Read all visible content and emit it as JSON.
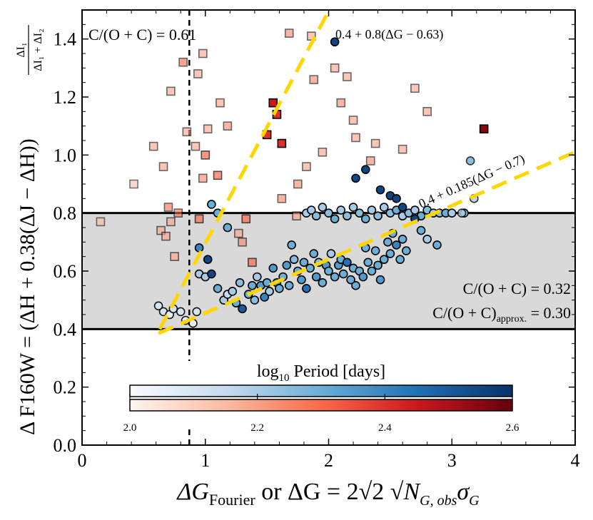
{
  "chart_data": {
    "type": "scatter",
    "xlim": [
      0,
      4
    ],
    "ylim": [
      0.0,
      1.5
    ],
    "x_ticks": [
      "0",
      "1",
      "2",
      "3",
      "4"
    ],
    "y_ticks": [
      "0.0",
      "0.2",
      "0.4",
      "0.6",
      "0.8",
      "1.0",
      "1.2",
      "1.4"
    ],
    "xlabel_text": "ΔG_Fourier or ΔG = 2√2 √N_G,obs σ_G",
    "ylabel_text": "Δ F160W = (ΔH + 0.38(ΔJ − ΔH)) ΔI1/(ΔI1+ΔI2)",
    "xlabel": {
      "main": "ΔG",
      "sub": "Fourier",
      "mid": " or ΔG = 2√2 √",
      "n": "N",
      "nsub": "G, obs",
      "sigma": "σ",
      "sigmasub": "G"
    },
    "ylabel": {
      "prefix": "Δ F160W = (ΔH + 0.38(ΔJ − ΔH))",
      "frac_num": "ΔI₁",
      "frac_den": "ΔI₁ + ΔI₂"
    },
    "annotations": {
      "cfrac_top": "C/(O + C) = 0.61",
      "cfrac_band": "C/(O + C) = 0.32",
      "cfrac_approx_main": "C/(O + C)",
      "cfrac_approx_sub": "approx.",
      "cfrac_approx_val": " = 0.30",
      "line_steep_label": "0.4 + 0.8(ΔG − 0.63)",
      "line_shallow_label": "0.4 + 0.185(ΔG − 0.7)"
    },
    "shaded_band": {
      "y0": 0.4,
      "y1": 0.8,
      "color": "#d9d9d9"
    },
    "hlines": [
      0.4,
      0.8
    ],
    "vline_x": 0.87,
    "lines": [
      {
        "name": "steep",
        "slope": 0.8,
        "x0": 0.63,
        "y0": 0.4,
        "x_range": [
          0.63,
          1.99
        ],
        "color": "#ffd700"
      },
      {
        "name": "shallow",
        "slope": 0.185,
        "x0": 0.7,
        "y0": 0.4,
        "x_range": [
          0.62,
          4.0
        ],
        "color": "#ffd700"
      }
    ],
    "colorbar": {
      "title_log": "log",
      "title_sub": "10",
      "title_rest": " Period [days]",
      "ticks": [
        "2.0",
        "2.2",
        "2.4",
        "2.6"
      ],
      "range": [
        2.0,
        2.6
      ],
      "blue_stops": [
        "#f7fbff",
        "#c6dbef",
        "#6baed6",
        "#2171b5",
        "#08306b"
      ],
      "red_stops": [
        "#fff5f0",
        "#fcbba1",
        "#fb6a4a",
        "#cb181d",
        "#67000d"
      ]
    },
    "series": [
      {
        "name": "carbon-rich (squares, Reds)",
        "marker": "square",
        "points": [
          [
            0.15,
            0.77,
            2.15,
            0.55
          ],
          [
            0.42,
            0.9,
            2.15,
            0.55
          ],
          [
            0.58,
            1.03,
            2.2,
            0.6
          ],
          [
            0.66,
            0.96,
            2.2,
            0.6
          ],
          [
            0.72,
            1.22,
            2.2,
            0.6
          ],
          [
            0.64,
            0.74,
            2.2,
            0.6
          ],
          [
            0.68,
            0.72,
            2.2,
            0.6
          ],
          [
            0.72,
            0.77,
            2.2,
            0.6
          ],
          [
            0.75,
            0.65,
            2.2,
            0.6
          ],
          [
            0.7,
            0.82,
            2.3,
            0.6
          ],
          [
            0.78,
            0.8,
            2.3,
            0.6
          ],
          [
            0.82,
            1.32,
            2.3,
            0.6
          ],
          [
            0.85,
            1.08,
            2.2,
            0.6
          ],
          [
            0.92,
            1.03,
            2.2,
            0.6
          ],
          [
            0.94,
            1.28,
            2.2,
            0.6
          ],
          [
            0.98,
            1.35,
            2.2,
            0.6
          ],
          [
            1.02,
            1.09,
            2.2,
            0.6
          ],
          [
            1.0,
            1.0,
            2.3,
            0.7
          ],
          [
            0.98,
            0.92,
            2.25,
            0.6
          ],
          [
            0.95,
            0.78,
            2.3,
            0.7
          ],
          [
            1.12,
            1.18,
            2.2,
            0.6
          ],
          [
            1.18,
            1.1,
            2.25,
            0.6
          ],
          [
            1.1,
            0.93,
            2.3,
            0.7
          ],
          [
            1.27,
            0.73,
            2.2,
            0.6
          ],
          [
            1.3,
            0.7,
            2.25,
            0.6
          ],
          [
            1.38,
            0.63,
            2.3,
            0.7
          ],
          [
            1.33,
            0.78,
            2.3,
            0.7
          ],
          [
            1.74,
            0.79,
            2.2,
            0.6
          ],
          [
            1.62,
            0.85,
            2.25,
            0.6
          ],
          [
            1.75,
            0.9,
            2.25,
            0.6
          ],
          [
            1.82,
            0.96,
            2.2,
            0.6
          ],
          [
            2.05,
            1.3,
            2.2,
            0.6
          ],
          [
            2.15,
            1.27,
            2.2,
            0.6
          ],
          [
            2.2,
            1.12,
            2.2,
            0.6
          ],
          [
            2.34,
            0.98,
            2.25,
            0.6
          ],
          [
            2.22,
            1.06,
            2.2,
            0.6
          ],
          [
            2.38,
            1.04,
            2.2,
            0.6
          ],
          [
            2.6,
            1.02,
            2.2,
            0.6
          ],
          [
            2.8,
            1.15,
            2.2,
            0.6
          ],
          [
            2.7,
            1.23,
            2.2,
            0.6
          ],
          [
            1.88,
            1.26,
            2.25,
            0.6
          ],
          [
            1.86,
            1.41,
            2.2,
            0.6
          ],
          [
            1.68,
            1.42,
            2.25,
            0.6
          ],
          [
            1.95,
            1.01,
            2.2,
            0.6
          ],
          [
            2.1,
            1.18,
            2.25,
            0.6
          ],
          [
            3.26,
            1.09,
            2.55,
            1.0
          ],
          [
            1.62,
            1.04,
            2.4,
            1.0
          ],
          [
            1.58,
            1.14,
            2.4,
            1.0
          ],
          [
            1.55,
            1.18,
            2.45,
            1.0
          ],
          [
            1.5,
            1.07,
            2.4,
            1.0
          ]
        ]
      },
      {
        "name": "oxygen-rich (circles, Blues)",
        "marker": "circle",
        "points": [
          [
            0.62,
            0.48,
            2.1,
            0.9
          ],
          [
            0.66,
            0.46,
            2.1,
            0.9
          ],
          [
            0.71,
            0.45,
            2.05,
            0.9
          ],
          [
            0.74,
            0.47,
            2.1,
            0.9
          ],
          [
            0.8,
            0.46,
            2.1,
            0.9
          ],
          [
            0.84,
            0.43,
            2.05,
            0.9
          ],
          [
            0.9,
            0.42,
            2.05,
            0.9
          ],
          [
            0.93,
            0.46,
            2.1,
            0.9
          ],
          [
            0.95,
            0.59,
            2.2,
            1.0
          ],
          [
            1.0,
            0.58,
            2.2,
            1.0
          ],
          [
            1.05,
            0.59,
            2.55,
            1.0
          ],
          [
            1.1,
            0.54,
            2.3,
            1.0
          ],
          [
            1.15,
            0.5,
            2.2,
            1.0
          ],
          [
            1.18,
            0.52,
            2.15,
            1.0
          ],
          [
            1.22,
            0.53,
            2.2,
            1.0
          ],
          [
            1.25,
            0.49,
            2.3,
            1.0
          ],
          [
            1.28,
            0.56,
            2.25,
            1.0
          ],
          [
            1.3,
            0.47,
            2.5,
            1.0
          ],
          [
            1.35,
            0.52,
            2.3,
            1.0
          ],
          [
            1.38,
            0.55,
            2.3,
            1.0
          ],
          [
            1.4,
            0.5,
            2.25,
            1.0
          ],
          [
            1.42,
            0.58,
            2.2,
            1.0
          ],
          [
            1.45,
            0.55,
            2.35,
            1.0
          ],
          [
            1.48,
            0.51,
            2.4,
            1.0
          ],
          [
            1.5,
            0.56,
            2.3,
            1.0
          ],
          [
            1.52,
            0.53,
            2.2,
            1.0
          ],
          [
            1.55,
            0.61,
            2.35,
            1.0
          ],
          [
            1.58,
            0.56,
            2.4,
            1.0
          ],
          [
            1.6,
            0.54,
            2.3,
            1.0
          ],
          [
            1.63,
            0.58,
            2.3,
            1.0
          ],
          [
            1.66,
            0.62,
            2.35,
            1.0
          ],
          [
            1.68,
            0.55,
            2.3,
            1.0
          ],
          [
            1.7,
            0.69,
            2.3,
            1.0
          ],
          [
            1.72,
            0.64,
            2.25,
            1.0
          ],
          [
            1.75,
            0.6,
            2.3,
            1.0
          ],
          [
            1.78,
            0.57,
            2.35,
            1.0
          ],
          [
            1.8,
            0.63,
            2.3,
            1.0
          ],
          [
            1.82,
            0.54,
            2.45,
            1.0
          ],
          [
            1.85,
            0.61,
            2.3,
            1.0
          ],
          [
            1.88,
            0.66,
            2.3,
            1.0
          ],
          [
            1.9,
            0.58,
            2.35,
            1.0
          ],
          [
            1.92,
            0.63,
            2.25,
            1.0
          ],
          [
            1.95,
            0.56,
            2.3,
            1.0
          ],
          [
            1.98,
            0.62,
            2.35,
            1.0
          ],
          [
            2.0,
            0.6,
            2.3,
            1.0
          ],
          [
            2.02,
            0.66,
            2.2,
            1.0
          ],
          [
            2.05,
            0.58,
            2.3,
            1.0
          ],
          [
            2.08,
            0.62,
            2.35,
            1.0
          ],
          [
            2.1,
            0.64,
            2.3,
            1.0
          ],
          [
            2.12,
            0.59,
            2.3,
            1.0
          ],
          [
            2.15,
            0.63,
            2.45,
            1.0
          ],
          [
            2.18,
            0.57,
            2.3,
            1.0
          ],
          [
            2.2,
            0.61,
            2.3,
            1.0
          ],
          [
            2.22,
            0.55,
            2.3,
            1.0
          ],
          [
            2.25,
            0.6,
            2.3,
            1.0
          ],
          [
            2.28,
            0.58,
            2.35,
            1.0
          ],
          [
            2.3,
            0.68,
            2.3,
            1.0
          ],
          [
            2.32,
            0.63,
            2.3,
            1.0
          ],
          [
            2.35,
            0.6,
            2.3,
            1.0
          ],
          [
            2.38,
            0.67,
            2.3,
            1.0
          ],
          [
            2.4,
            0.62,
            2.3,
            1.0
          ],
          [
            2.42,
            0.57,
            2.35,
            1.0
          ],
          [
            2.45,
            0.64,
            2.3,
            1.0
          ],
          [
            2.48,
            0.7,
            2.3,
            1.0
          ],
          [
            2.5,
            0.66,
            2.3,
            1.0
          ],
          [
            2.52,
            0.73,
            2.3,
            1.0
          ],
          [
            2.55,
            0.69,
            2.4,
            1.0
          ],
          [
            2.58,
            0.64,
            2.3,
            1.0
          ],
          [
            2.6,
            0.71,
            2.3,
            1.0
          ],
          [
            2.63,
            0.67,
            2.3,
            1.0
          ],
          [
            1.82,
            0.8,
            2.2,
            1.0
          ],
          [
            1.86,
            0.81,
            2.2,
            1.0
          ],
          [
            1.9,
            0.79,
            2.25,
            1.0
          ],
          [
            1.95,
            0.82,
            2.2,
            1.0
          ],
          [
            2.0,
            0.8,
            2.25,
            1.0
          ],
          [
            2.05,
            0.78,
            2.3,
            1.0
          ],
          [
            2.1,
            0.81,
            2.2,
            1.0
          ],
          [
            2.15,
            0.79,
            2.25,
            1.0
          ],
          [
            2.2,
            0.82,
            2.2,
            1.0
          ],
          [
            2.25,
            0.8,
            2.25,
            1.0
          ],
          [
            2.3,
            0.78,
            2.3,
            1.0
          ],
          [
            2.35,
            0.81,
            2.2,
            1.0
          ],
          [
            2.4,
            0.79,
            2.25,
            1.0
          ],
          [
            2.45,
            0.82,
            2.2,
            1.0
          ],
          [
            2.5,
            0.8,
            2.25,
            1.0
          ],
          [
            2.55,
            0.81,
            2.3,
            1.0
          ],
          [
            2.6,
            0.79,
            2.2,
            1.0
          ],
          [
            2.65,
            0.8,
            2.25,
            1.0
          ],
          [
            2.7,
            0.81,
            2.2,
            1.0
          ],
          [
            2.75,
            0.79,
            2.3,
            1.0
          ],
          [
            2.8,
            0.81,
            2.25,
            1.0
          ],
          [
            2.85,
            0.8,
            2.2,
            1.0
          ],
          [
            2.9,
            0.8,
            2.25,
            1.0
          ],
          [
            2.95,
            0.8,
            2.3,
            1.0
          ],
          [
            3.0,
            0.8,
            2.2,
            1.0
          ],
          [
            3.1,
            0.8,
            2.25,
            1.0
          ],
          [
            2.22,
            0.92,
            2.55,
            1.0
          ],
          [
            2.3,
            0.95,
            2.55,
            1.0
          ],
          [
            2.42,
            0.88,
            2.55,
            1.0
          ],
          [
            2.5,
            0.86,
            2.55,
            1.0
          ],
          [
            2.55,
            0.85,
            2.55,
            1.0
          ],
          [
            2.6,
            0.82,
            2.55,
            1.0
          ],
          [
            2.7,
            0.78,
            2.55,
            1.0
          ],
          [
            2.75,
            0.74,
            2.3,
            1.0
          ],
          [
            2.8,
            0.71,
            2.2,
            1.0
          ],
          [
            3.15,
            0.98,
            2.3,
            0.8
          ],
          [
            3.18,
            0.85,
            2.2,
            0.8
          ],
          [
            3.08,
            0.8,
            2.2,
            0.8
          ],
          [
            2.88,
            0.69,
            2.3,
            1.0
          ],
          [
            2.05,
            1.39,
            2.55,
            1.0
          ],
          [
            1.05,
            0.83,
            2.3,
            1.0
          ],
          [
            1.1,
            0.8,
            2.3,
            1.0
          ],
          [
            1.18,
            0.75,
            2.3,
            1.0
          ],
          [
            1.02,
            0.64,
            2.55,
            1.0
          ],
          [
            0.95,
            0.68,
            2.4,
            1.0
          ]
        ]
      }
    ]
  }
}
